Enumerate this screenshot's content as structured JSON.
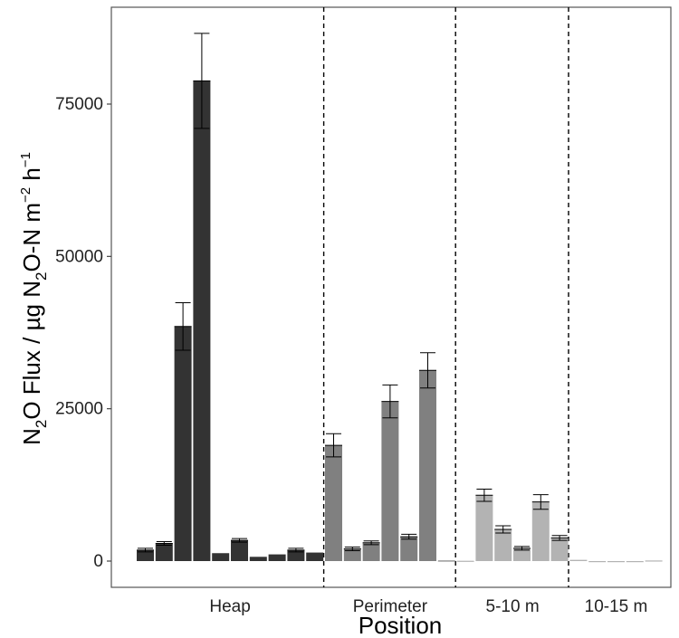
{
  "chart_data": {
    "type": "bar",
    "xlabel": "Position",
    "ylabel_parts": {
      "n": "N",
      "two_a": "2",
      "o_flux": "O Flux  /  µg N",
      "two_b": "2",
      "o_n_m": "O-N m",
      "neg2": "−2",
      "h": " h",
      "neg1": "−1"
    },
    "ylim": [
      -4000,
      91000
    ],
    "yticks": [
      0,
      25000,
      50000,
      75000
    ],
    "ytick_labels": [
      "0",
      "25000",
      "50000",
      "75000"
    ],
    "grid": false,
    "legend": "none",
    "groups": [
      {
        "label": "Heap",
        "color": "#333333",
        "values": [
          1800,
          2900,
          38500,
          78800,
          1300,
          3400,
          700,
          1100,
          1800,
          1400
        ],
        "errors": [
          300,
          300,
          3900,
          7800,
          0,
          300,
          0,
          0,
          300,
          0
        ]
      },
      {
        "label": "Perimeter",
        "color": "#808080",
        "values": [
          19000,
          2000,
          3000,
          26200,
          4000,
          31300,
          100
        ],
        "errors": [
          1900,
          300,
          300,
          2700,
          400,
          2900,
          0
        ]
      },
      {
        "label": "5-10 m",
        "color": "#b3b3b3",
        "values": [
          50,
          10800,
          5200,
          2100,
          9700,
          3800
        ],
        "errors": [
          0,
          1000,
          600,
          300,
          1200,
          400
        ]
      },
      {
        "label": "10-15 m",
        "color": "#b3b3b3",
        "values": [
          200,
          -50,
          -60,
          -50,
          100
        ],
        "errors": [
          0,
          0,
          0,
          0,
          0
        ]
      }
    ]
  }
}
